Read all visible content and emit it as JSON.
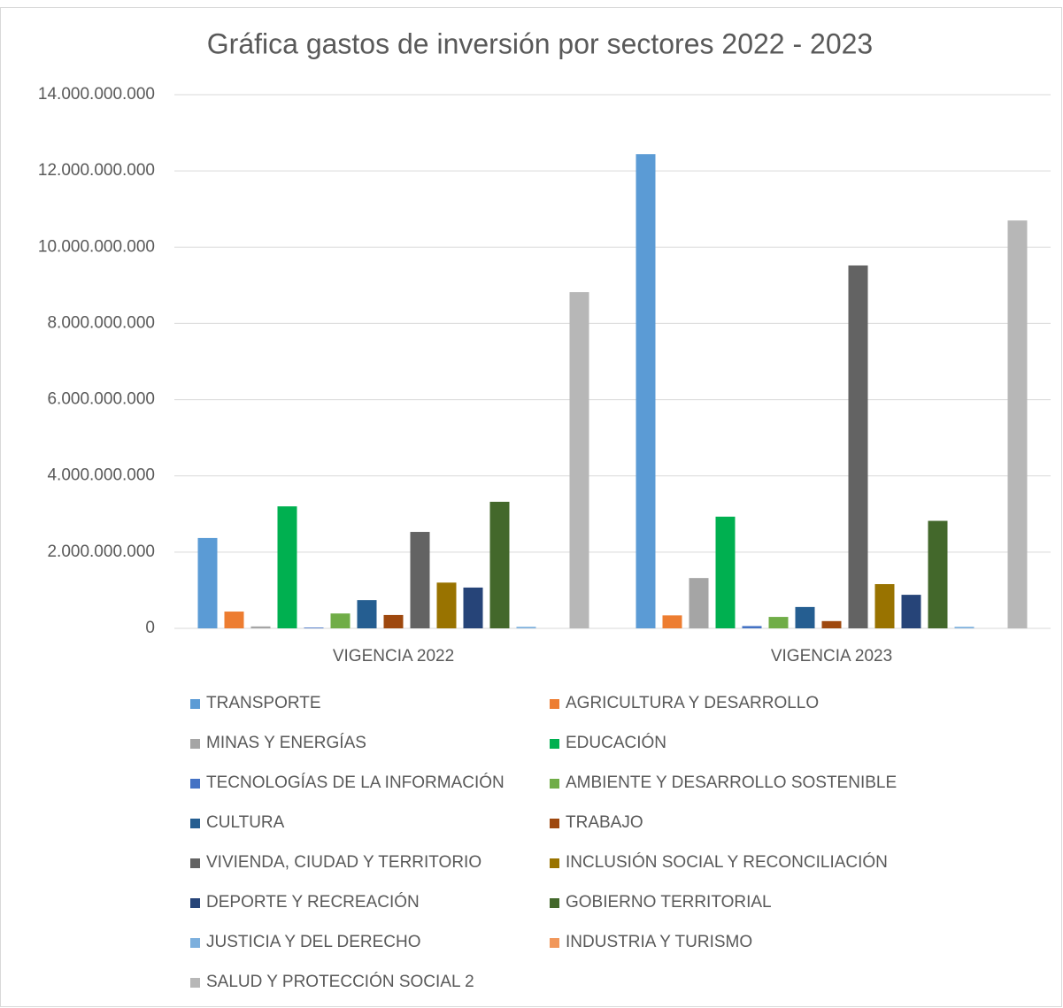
{
  "chart_data": {
    "type": "bar",
    "title": "Gráfica gastos de inversión por sectores 2022 - 2023",
    "categories": [
      "VIGENCIA 2022",
      "VIGENCIA 2023"
    ],
    "series": [
      {
        "name": "TRANSPORTE",
        "color": "#5b9bd5",
        "values": [
          2370000000,
          12440000000
        ]
      },
      {
        "name": "AGRICULTURA Y DESARROLLO",
        "color": "#ed7d31",
        "values": [
          440000000,
          340000000
        ]
      },
      {
        "name": "MINAS Y ENERGÍAS",
        "color": "#a5a5a5",
        "values": [
          50000000,
          1320000000
        ]
      },
      {
        "name": "EDUCACIÓN",
        "color": "#00b050",
        "values": [
          3200000000,
          2930000000
        ]
      },
      {
        "name": "TECNOLOGÍAS DE LA INFORMACIÓN",
        "color": "#4472c4",
        "values": [
          20000000,
          60000000
        ]
      },
      {
        "name": "AMBIENTE Y DESARROLLO SOSTENIBLE",
        "color": "#70ad47",
        "values": [
          390000000,
          300000000
        ]
      },
      {
        "name": "CULTURA",
        "color": "#255e91",
        "values": [
          740000000,
          560000000
        ]
      },
      {
        "name": "TRABAJO",
        "color": "#9e480e",
        "values": [
          350000000,
          190000000
        ]
      },
      {
        "name": "VIVIENDA, CIUDAD Y TERRITORIO",
        "color": "#636363",
        "values": [
          2530000000,
          9520000000
        ]
      },
      {
        "name": "INCLUSIÓN SOCIAL Y RECONCILIACIÓN",
        "color": "#997300",
        "values": [
          1200000000,
          1160000000
        ]
      },
      {
        "name": "DEPORTE Y RECREACIÓN",
        "color": "#264478",
        "values": [
          1070000000,
          880000000
        ]
      },
      {
        "name": "GOBIERNO TERRITORIAL",
        "color": "#43682b",
        "values": [
          3320000000,
          2820000000
        ]
      },
      {
        "name": "JUSTICIA Y DEL DERECHO",
        "color": "#7cafdd",
        "values": [
          40000000,
          40000000
        ]
      },
      {
        "name": "INDUSTRIA Y TURISMO",
        "color": "#f1975a",
        "values": [
          0,
          0
        ]
      },
      {
        "name": "SALUD Y PROTECCIÓN SOCIAL 2",
        "color": "#b7b7b7",
        "values": [
          8820000000,
          10700000000
        ]
      }
    ],
    "ylim": [
      0,
      14000000000
    ],
    "yticks": [
      0,
      {
        "value": 2000000000,
        "label": "2.000.000.000"
      },
      {
        "value": 4000000000,
        "label": "4.000.000.000"
      },
      {
        "value": 6000000000,
        "label": "6.000.000.000"
      },
      {
        "value": 8000000000,
        "label": "8.000.000.000"
      },
      {
        "value": 10000000000,
        "label": "10.000.000.000"
      },
      {
        "value": 12000000000,
        "label": "12.000.000.000"
      },
      {
        "value": 14000000000,
        "label": "14.000.000.000"
      }
    ],
    "grid": true
  }
}
